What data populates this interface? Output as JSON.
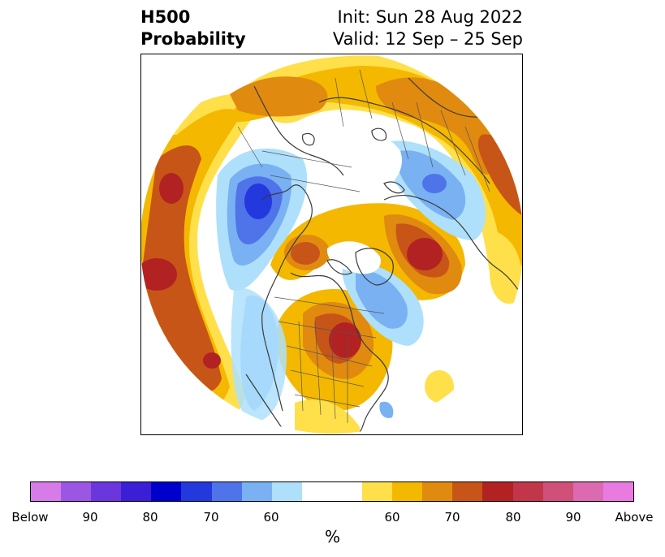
{
  "header": {
    "title_line1": "H500",
    "title_line2": "Probability",
    "init": "Init: Sun 28 Aug 2022",
    "valid": "Valid: 12 Sep – 25 Sep"
  },
  "colorbar": {
    "colors": [
      "#d67be8",
      "#9b57e3",
      "#6a37dd",
      "#3a1fd6",
      "#0000cc",
      "#2338dd",
      "#4f73e8",
      "#79b1f3",
      "#aee0fb",
      "#ffffff",
      "#ffe04a",
      "#f4b800",
      "#e08a10",
      "#c85518",
      "#b22222",
      "#c2364a",
      "#d0507a",
      "#dc6ab0",
      "#e97be0"
    ],
    "tick_labels": [
      "Below",
      "90",
      "80",
      "70",
      "60",
      "60",
      "70",
      "80",
      "90",
      "Above"
    ],
    "unit_label": "%"
  },
  "map": {
    "projection": "north-polar-stereographic",
    "field": "500 hPa height tercile probability",
    "features": [
      "coastlines",
      "country-borders",
      "us-state-borders"
    ]
  }
}
